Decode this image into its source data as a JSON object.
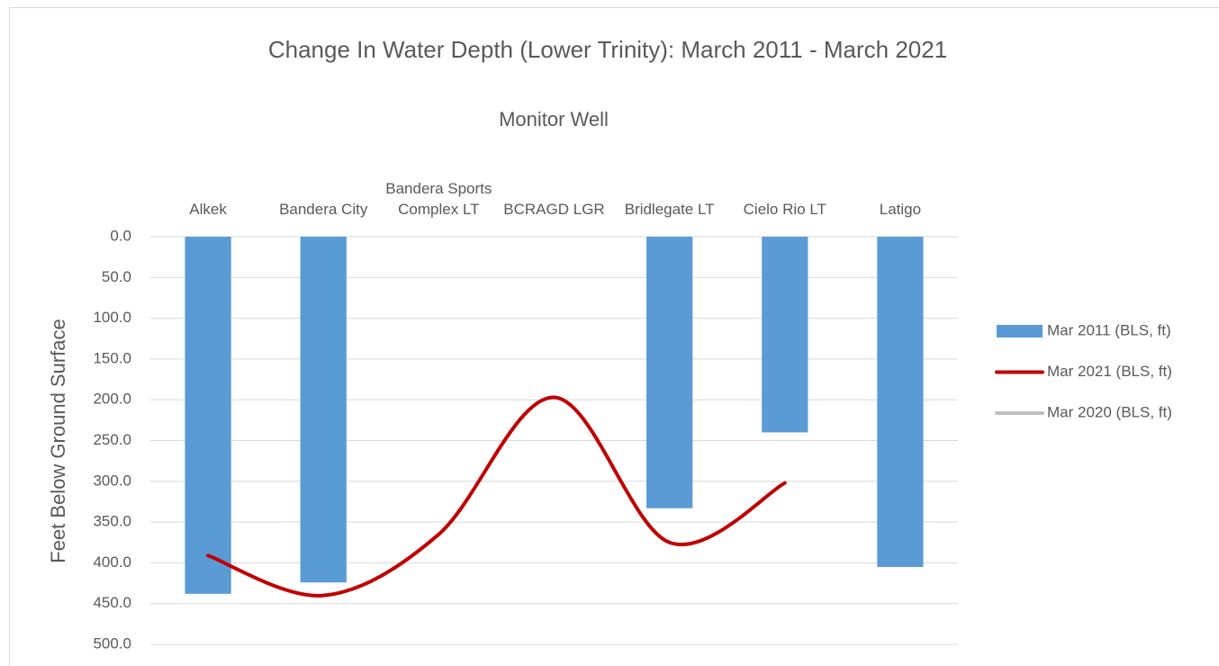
{
  "chart_data": {
    "type": "bar",
    "title": "Change In Water Depth (Lower Trinity): March 2011 - March 2021",
    "subtitle": "Monitor Well",
    "y_label": "Feet Below Ground Surface",
    "categories": [
      "Alkek",
      "Bandera City",
      "Bandera Sports Complex LT",
      "BCRAGD LGR",
      "Bridlegate LT",
      "Cielo Rio LT",
      "Latigo"
    ],
    "series": [
      {
        "name": "Mar 2011 (BLS, ft)",
        "type": "bar",
        "color": "#5b9bd5",
        "values": [
          438,
          424,
          null,
          null,
          333,
          240,
          405
        ]
      },
      {
        "name": "Mar 2021 (BLS, ft)",
        "type": "line",
        "color": "#c00000",
        "values": [
          391,
          440,
          365,
          197,
          375,
          302,
          null
        ]
      },
      {
        "name": "Mar 2020 (BLS, ft)",
        "type": "line",
        "color": "#bfbfbf",
        "values": [
          null,
          null,
          null,
          null,
          null,
          null,
          null
        ]
      }
    ],
    "ylim": [
      0,
      500
    ],
    "y_reversed": true,
    "yticks": [
      {
        "value": 0,
        "label": "0.0"
      },
      {
        "value": 50,
        "label": "50.0"
      },
      {
        "value": 100,
        "label": "100.0"
      },
      {
        "value": 150,
        "label": "150.0"
      },
      {
        "value": 200,
        "label": "200.0"
      },
      {
        "value": 250,
        "label": "250.0"
      },
      {
        "value": 300,
        "label": "300.0"
      },
      {
        "value": 350,
        "label": "350.0"
      },
      {
        "value": 400,
        "label": "400.0"
      },
      {
        "value": 450,
        "label": "450.0"
      },
      {
        "value": 500,
        "label": "500.0"
      }
    ],
    "grid": true,
    "legend": "right"
  }
}
